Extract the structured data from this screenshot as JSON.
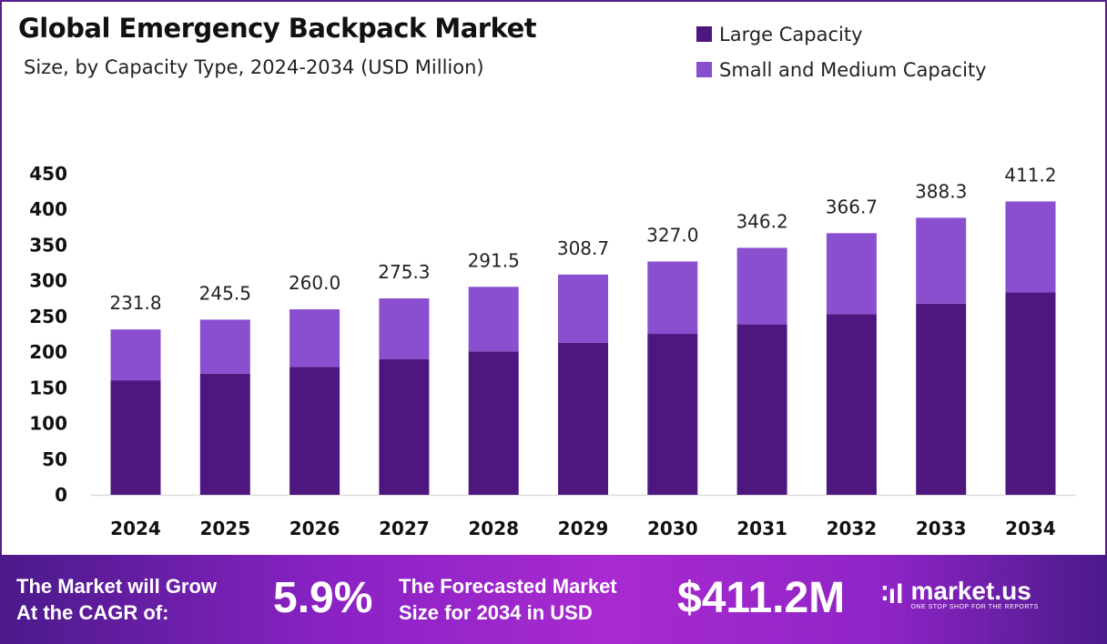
{
  "chart_data": {
    "type": "bar",
    "stacked": true,
    "title": "Global Emergency Backpack Market",
    "subtitle": "Size, by Capacity Type, 2024-2034 (USD Million)",
    "categories": [
      "2024",
      "2025",
      "2026",
      "2027",
      "2028",
      "2029",
      "2030",
      "2031",
      "2032",
      "2033",
      "2034"
    ],
    "series": [
      {
        "name": "Large Capacity",
        "color": "#4e1780",
        "values": [
          160.5,
          169.8,
          179.4,
          190.0,
          201.1,
          213.0,
          225.6,
          238.9,
          253.0,
          267.9,
          283.7
        ]
      },
      {
        "name": "Small and Medium Capacity",
        "color": "#8a4fcf",
        "values": [
          71.3,
          75.7,
          80.6,
          85.3,
          90.4,
          95.7,
          101.4,
          107.3,
          113.7,
          120.4,
          127.5
        ]
      }
    ],
    "totals_labels": [
      "231.8",
      "245.5",
      "260.0",
      "275.3",
      "291.5",
      "308.7",
      "327.0",
      "346.2",
      "366.7",
      "388.3",
      "411.2"
    ],
    "yticks": [
      "0",
      "50",
      "100",
      "150",
      "200",
      "250",
      "300",
      "350",
      "400",
      "450"
    ],
    "ylim": [
      0,
      450
    ],
    "grid": false,
    "legend_position": "top-right",
    "xlabel": "",
    "ylabel": ""
  },
  "banner": {
    "cagr_text_1": "The Market will Grow",
    "cagr_text_2": "At the CAGR of:",
    "cagr_value": "5.9%",
    "forecast_text_1": "The Forecasted Market",
    "forecast_text_2": "Size for 2034 in USD",
    "forecast_value": "$411.2M",
    "logo_text": "market.us",
    "logo_tagline": "ONE STOP SHOP FOR THE REPORTS"
  }
}
